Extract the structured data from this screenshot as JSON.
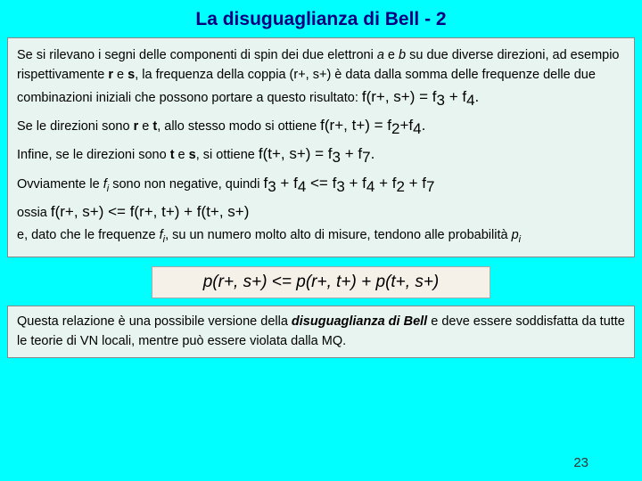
{
  "title": "La disuguaglianza di Bell - 2",
  "p1a": "Se si rilevano i segni delle componenti di spin dei due elettroni ",
  "p1b": " e ",
  "p1c": " su due diverse direzioni, ad esempio rispettivamente ",
  "p1d": " e ",
  "p1e": ", la frequenza della coppia ",
  "p1f": " è data dalla somma delle frequenze delle due combinazioni iniziali che possono portare a questo risultato: ",
  "a": "a",
  "b": "b",
  "r": "r",
  "s": "s",
  "t": "t",
  "rs_pair": "(r+, s+)",
  "eq1": "f(r+, s+) = f",
  "eq1b": " + f",
  "eq1c": ".",
  "n3": "3",
  "n4": "4",
  "n2": "2",
  "n7": "7",
  "p2a": "Se le direzioni sono ",
  "p2b": " e ",
  "p2c": ", allo stesso modo si ottiene ",
  "eq2": "f(r+, t+) = f",
  "eq2b": "+f",
  "p3a": "Infine, se le direzioni sono ",
  "p3b": " e ",
  "p3c": ", si ottiene ",
  "eq3": "f(t+, s+) = f",
  "eq3b": " + f",
  "p4a": "Ovviamente le ",
  "fi": "f",
  "isub": "i",
  "p4b": " sono non negative, quindi ",
  "ineq1": "f",
  "plus": " + f",
  "le": " <= f",
  "p5a": "ossia ",
  "ineq2": "f(r+, s+) <= f(r+, t+) + f(t+, s+)",
  "p6a": "e, dato che le frequenze ",
  "p6b": ", su un numero molto alto di misure, tendono alle probabilità ",
  "pi": "p",
  "main_eq": "p(r+, s+) <= p(r+, t+) + p(t+, s+)",
  "footer_a": "Questa relazione è una possibile versione della ",
  "footer_bold": "disuguaglianza di Bell",
  "footer_b": " e deve essere soddisfatta da tutte le teorie di VN locali, mentre può essere violata dalla MQ.",
  "page": "23"
}
